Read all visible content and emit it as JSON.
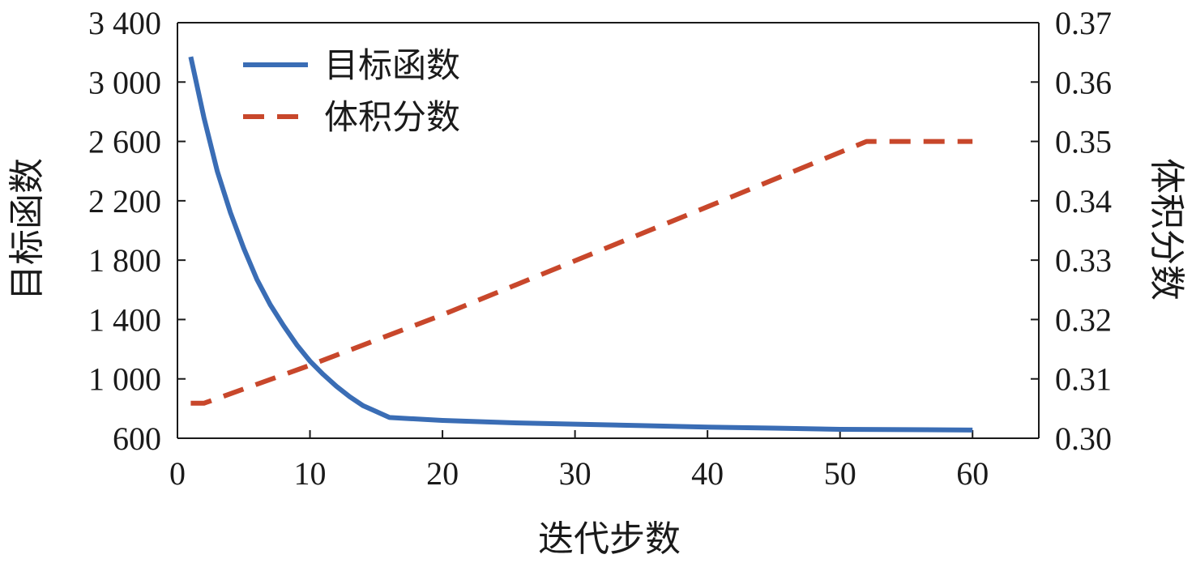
{
  "chart_data": {
    "type": "line",
    "x_label": "迭代步数",
    "y_left_label": "目标函数",
    "y_right_label": "体积分数",
    "xlim": [
      0,
      65
    ],
    "y_left_lim": [
      600,
      3400
    ],
    "y_right_lim": [
      0.3,
      0.37
    ],
    "x_ticks": [
      0,
      10,
      20,
      30,
      40,
      50,
      60
    ],
    "y_left_ticks": [
      600,
      1000,
      1400,
      1800,
      2200,
      2600,
      3000,
      3400
    ],
    "y_left_tick_labels": [
      "600",
      "1 000",
      "1 400",
      "1 800",
      "2 200",
      "2 600",
      "3 000",
      "3 400"
    ],
    "y_right_ticks": [
      0.3,
      0.31,
      0.32,
      0.33,
      0.34,
      0.35,
      0.36,
      0.37
    ],
    "y_right_tick_labels": [
      "0.30",
      "0.31",
      "0.32",
      "0.33",
      "0.34",
      "0.35",
      "0.36",
      "0.37"
    ],
    "legend_position": "top-left",
    "series": [
      {
        "name": "目标函数",
        "axis": "left",
        "style": "solid",
        "color": "#3a6db5",
        "x": [
          1,
          2,
          3,
          4,
          5,
          6,
          7,
          8,
          9,
          10,
          11,
          12,
          13,
          14,
          15,
          16,
          20,
          25,
          30,
          35,
          40,
          45,
          50,
          55,
          60
        ],
        "y": [
          3170,
          2760,
          2400,
          2120,
          1880,
          1670,
          1500,
          1360,
          1230,
          1120,
          1030,
          950,
          880,
          820,
          780,
          740,
          720,
          705,
          695,
          685,
          675,
          668,
          660,
          658,
          655
        ]
      },
      {
        "name": "体积分数",
        "axis": "right",
        "style": "dashed",
        "color": "#c8472b",
        "x": [
          1,
          2,
          10,
          20,
          30,
          40,
          52,
          53,
          60
        ],
        "y": [
          0.3059,
          0.3059,
          0.3123,
          0.3208,
          0.3299,
          0.339,
          0.35,
          0.35,
          0.35
        ]
      }
    ]
  }
}
